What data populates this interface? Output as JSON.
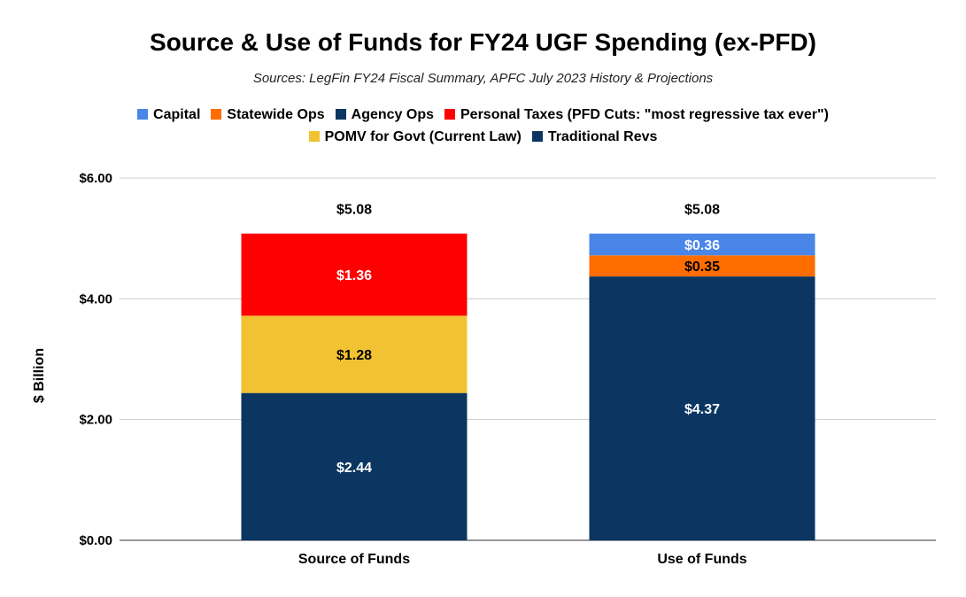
{
  "chart_data": {
    "type": "bar",
    "stacked": true,
    "title": "Source & Use of Funds for FY24 UGF Spending (ex-PFD)",
    "subtitle": "Sources: LegFin FY24 Fiscal Summary, APFC July 2023 History & Projections",
    "xlabel": "",
    "ylabel": "$ Billion",
    "ylim": [
      0,
      6
    ],
    "yticks": [
      {
        "value": 0,
        "label": "$0.00"
      },
      {
        "value": 2,
        "label": "$2.00"
      },
      {
        "value": 4,
        "label": "$4.00"
      },
      {
        "value": 6,
        "label": "$6.00"
      }
    ],
    "grid": true,
    "legend_position": "top",
    "categories": [
      "Source of Funds",
      "Use of Funds"
    ],
    "series": [
      {
        "name": "Traditional Revs",
        "color": "#0b3661",
        "values": [
          2.44,
          0
        ],
        "labels": [
          "$2.44",
          ""
        ],
        "label_color": "#ffffff"
      },
      {
        "name": "POMV for Govt (Current Law)",
        "color": "#f1c232",
        "values": [
          1.28,
          0
        ],
        "labels": [
          "$1.28",
          ""
        ],
        "label_color": "#000000"
      },
      {
        "name": "Personal Taxes (PFD Cuts: \"most regressive tax ever\")",
        "color": "#ff0000",
        "values": [
          1.36,
          0
        ],
        "labels": [
          "$1.36",
          ""
        ],
        "label_color": "#ffffff"
      },
      {
        "name": "Agency Ops",
        "color": "#0b3661",
        "values": [
          0,
          4.37
        ],
        "labels": [
          "",
          "$4.37"
        ],
        "label_color": "#ffffff"
      },
      {
        "name": "Statewide Ops",
        "color": "#ff6d01",
        "values": [
          0,
          0.35
        ],
        "labels": [
          "",
          "$0.35"
        ],
        "label_color": "#000000"
      },
      {
        "name": "Capital",
        "color": "#4a86e8",
        "values": [
          0,
          0.36
        ],
        "labels": [
          "",
          "$0.36"
        ],
        "label_color": "#ffffff"
      }
    ],
    "totals": [
      "$5.08",
      "$5.08"
    ],
    "legend_rows": [
      [
        "Capital",
        "Statewide Ops",
        "Agency Ops",
        "Personal Taxes (PFD Cuts: \"most regressive tax ever\")"
      ],
      [
        "POMV for Govt (Current Law)",
        "Traditional Revs"
      ]
    ]
  }
}
